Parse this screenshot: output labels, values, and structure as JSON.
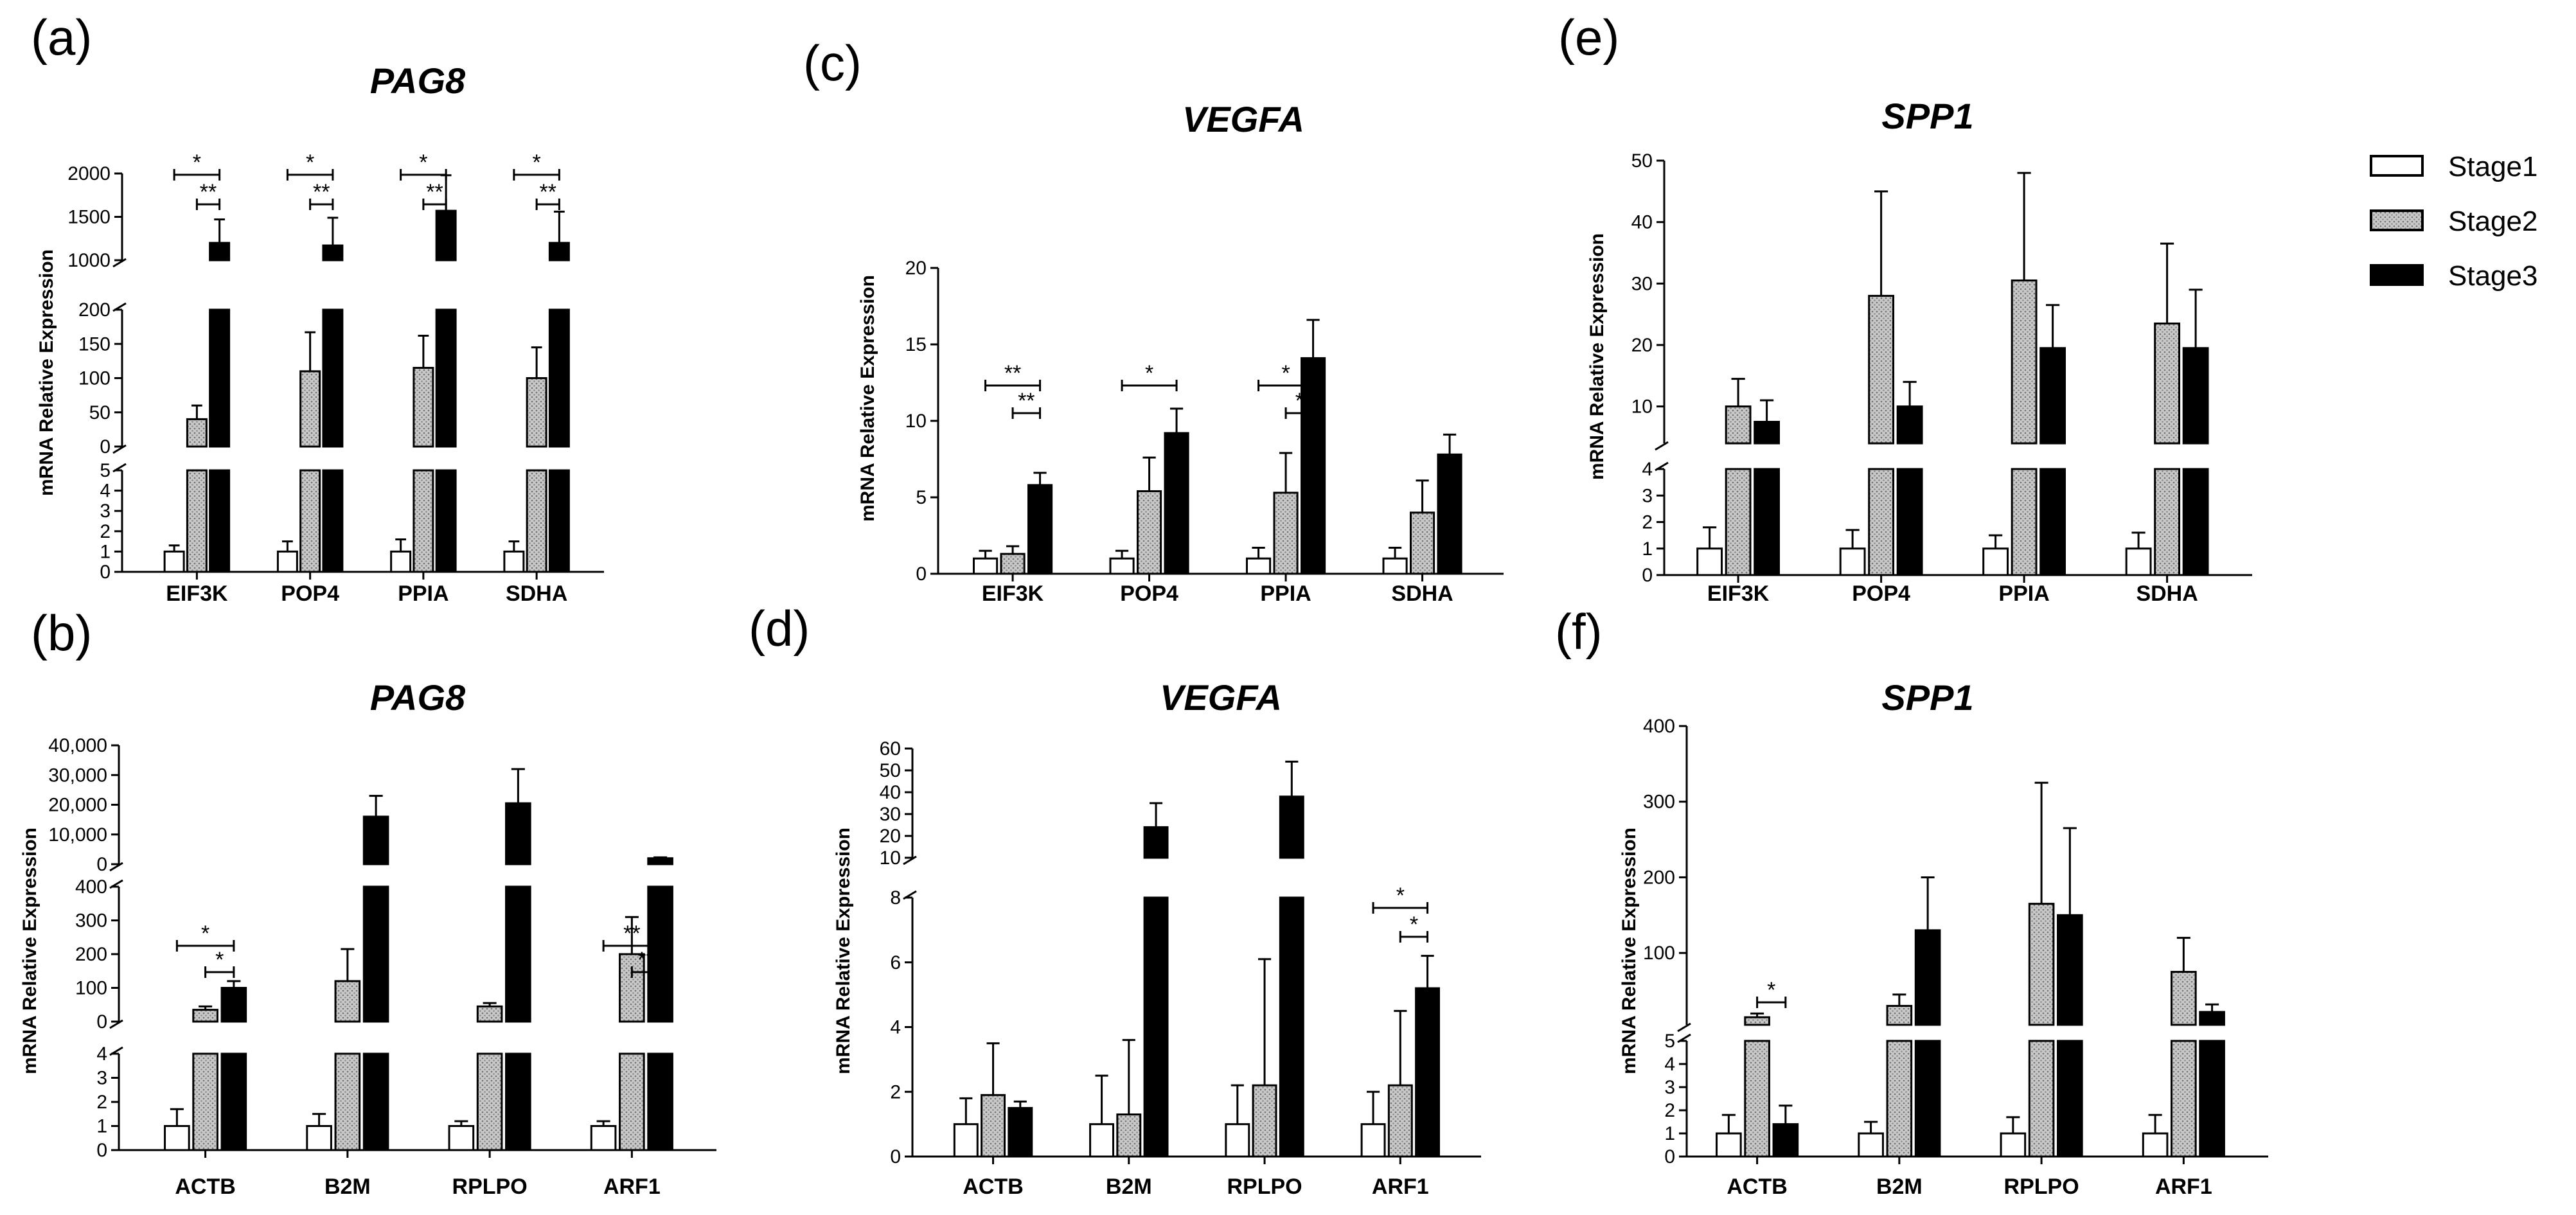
{
  "legend": {
    "entries": [
      {
        "label": "Stage1",
        "style": "white"
      },
      {
        "label": "Stage2",
        "style": "dotted"
      },
      {
        "label": "Stage3",
        "style": "black"
      }
    ],
    "placement": "top-right"
  },
  "chart_data": [
    {
      "panel": "(a)",
      "type": "bar",
      "title": "PAG8",
      "ylabel": "mRNA Relative Expression",
      "categories": [
        "EIF3K",
        "POP4",
        "PPIA",
        "SDHA"
      ],
      "y_segments": [
        {
          "range": [
            0,
            5
          ],
          "ticks": [
            "0",
            "1",
            "2",
            "3",
            "4",
            "5"
          ]
        },
        {
          "range": [
            0,
            200
          ],
          "ticks": [
            "0",
            "50",
            "100",
            "150",
            "200"
          ]
        },
        {
          "range": [
            1000,
            2000
          ],
          "ticks": [
            "1000",
            "1500",
            "2000"
          ]
        }
      ],
      "series": [
        {
          "name": "Stage1",
          "values": [
            1.0,
            1.0,
            1.0,
            1.0
          ],
          "errors": [
            0.3,
            0.5,
            0.6,
            0.5
          ]
        },
        {
          "name": "Stage2",
          "values": [
            40,
            110,
            115,
            100
          ],
          "errors": [
            20,
            57,
            47,
            45
          ]
        },
        {
          "name": "Stage3",
          "values": [
            1200,
            1170,
            1570,
            1200
          ],
          "errors": [
            270,
            320,
            410,
            360
          ]
        }
      ],
      "significance": [
        {
          "cat": 0,
          "from": "Stage1",
          "to": "Stage3",
          "label": "*"
        },
        {
          "cat": 0,
          "from": "Stage2",
          "to": "Stage3",
          "label": "**"
        },
        {
          "cat": 1,
          "from": "Stage1",
          "to": "Stage3",
          "label": "*"
        },
        {
          "cat": 1,
          "from": "Stage2",
          "to": "Stage3",
          "label": "**"
        },
        {
          "cat": 2,
          "from": "Stage1",
          "to": "Stage3",
          "label": "*"
        },
        {
          "cat": 2,
          "from": "Stage2",
          "to": "Stage3",
          "label": "**"
        },
        {
          "cat": 3,
          "from": "Stage1",
          "to": "Stage3",
          "label": "*"
        },
        {
          "cat": 3,
          "from": "Stage2",
          "to": "Stage3",
          "label": "**"
        }
      ]
    },
    {
      "panel": "(b)",
      "type": "bar",
      "title": "PAG8",
      "ylabel": "mRNA Relative Expression",
      "categories": [
        "ACTB",
        "B2M",
        "RPLPO",
        "ARF1"
      ],
      "y_segments": [
        {
          "range": [
            0,
            4
          ],
          "ticks": [
            "0",
            "1",
            "2",
            "3",
            "4"
          ]
        },
        {
          "range": [
            0,
            400
          ],
          "ticks": [
            "0",
            "100",
            "200",
            "300",
            "400"
          ]
        },
        {
          "range": [
            0,
            40000
          ],
          "ticks": [
            "0",
            "10,000",
            "20,000",
            "30,000",
            "40,000"
          ]
        }
      ],
      "series": [
        {
          "name": "Stage1",
          "values": [
            1.0,
            1.0,
            1.0,
            1.0
          ],
          "errors": [
            0.7,
            0.5,
            0.2,
            0.2
          ]
        },
        {
          "name": "Stage2",
          "values": [
            35,
            120,
            45,
            200
          ],
          "errors": [
            10,
            95,
            10,
            110
          ]
        },
        {
          "name": "Stage3",
          "values": [
            100,
            16000,
            20500,
            2000
          ],
          "errors": [
            20,
            7000,
            11500,
            300
          ]
        }
      ],
      "significance": [
        {
          "cat": 0,
          "from": "Stage1",
          "to": "Stage3",
          "label": "*"
        },
        {
          "cat": 0,
          "from": "Stage2",
          "to": "Stage3",
          "label": "*"
        },
        {
          "cat": 3,
          "from": "Stage1",
          "to": "Stage3",
          "label": "**"
        },
        {
          "cat": 3,
          "from": "Stage2",
          "to": "Stage3",
          "label": "**"
        }
      ]
    },
    {
      "panel": "(c)",
      "type": "bar",
      "title": "VEGFA",
      "ylabel": "mRNA Relative Expression",
      "categories": [
        "EIF3K",
        "POP4",
        "PPIA",
        "SDHA"
      ],
      "y_segments": [
        {
          "range": [
            0,
            20
          ],
          "ticks": [
            "0",
            "5",
            "10",
            "15",
            "20"
          ]
        }
      ],
      "series": [
        {
          "name": "Stage1",
          "values": [
            1.0,
            1.0,
            1.0,
            1.0
          ],
          "errors": [
            0.5,
            0.5,
            0.7,
            0.7
          ]
        },
        {
          "name": "Stage2",
          "values": [
            1.3,
            5.4,
            5.3,
            4.0
          ],
          "errors": [
            0.5,
            2.2,
            2.6,
            2.1
          ]
        },
        {
          "name": "Stage3",
          "values": [
            5.8,
            9.2,
            14.1,
            7.8
          ],
          "errors": [
            0.8,
            1.6,
            2.5,
            1.3
          ]
        }
      ],
      "significance": [
        {
          "cat": 0,
          "from": "Stage1",
          "to": "Stage3",
          "label": "**"
        },
        {
          "cat": 0,
          "from": "Stage2",
          "to": "Stage3",
          "label": "**"
        },
        {
          "cat": 1,
          "from": "Stage1",
          "to": "Stage3",
          "label": "*"
        },
        {
          "cat": 2,
          "from": "Stage1",
          "to": "Stage3",
          "label": "*"
        },
        {
          "cat": 2,
          "from": "Stage2",
          "to": "Stage3",
          "label": "*"
        }
      ]
    },
    {
      "panel": "(d)",
      "type": "bar",
      "title": "VEGFA",
      "ylabel": "mRNA Relative Expression",
      "categories": [
        "ACTB",
        "B2M",
        "RPLPO",
        "ARF1"
      ],
      "y_segments": [
        {
          "range": [
            0,
            8
          ],
          "ticks": [
            "0",
            "2",
            "4",
            "6",
            "8"
          ]
        },
        {
          "range": [
            10,
            60
          ],
          "ticks": [
            "10",
            "20",
            "30",
            "40",
            "50",
            "60"
          ]
        }
      ],
      "series": [
        {
          "name": "Stage1",
          "values": [
            1.0,
            1.0,
            1.0,
            1.0
          ],
          "errors": [
            0.8,
            1.5,
            1.2,
            1.0
          ]
        },
        {
          "name": "Stage2",
          "values": [
            1.9,
            1.3,
            2.2,
            2.2
          ],
          "errors": [
            1.6,
            2.3,
            3.9,
            2.3
          ]
        },
        {
          "name": "Stage3",
          "values": [
            1.5,
            24,
            38,
            5.2
          ],
          "errors": [
            0.2,
            11,
            16,
            1.0
          ]
        }
      ],
      "significance": [
        {
          "cat": 3,
          "from": "Stage1",
          "to": "Stage3",
          "label": "*"
        },
        {
          "cat": 3,
          "from": "Stage2",
          "to": "Stage3",
          "label": "*"
        }
      ]
    },
    {
      "panel": "(e)",
      "type": "bar",
      "title": "SPP1",
      "ylabel": "mRNA Relative Expression",
      "categories": [
        "EIF3K",
        "POP4",
        "PPIA",
        "SDHA"
      ],
      "y_segments": [
        {
          "range": [
            0,
            4
          ],
          "ticks": [
            "0",
            "1",
            "2",
            "3",
            "4"
          ]
        },
        {
          "range": [
            4,
            50
          ],
          "ticks": [
            "10",
            "20",
            "30",
            "40",
            "50"
          ]
        }
      ],
      "series": [
        {
          "name": "Stage1",
          "values": [
            1.0,
            1.0,
            1.0,
            1.0
          ],
          "errors": [
            0.8,
            0.7,
            0.5,
            0.6
          ]
        },
        {
          "name": "Stage2",
          "values": [
            10,
            28,
            30.5,
            23.5
          ],
          "errors": [
            4.5,
            17,
            17.5,
            13
          ]
        },
        {
          "name": "Stage3",
          "values": [
            7.5,
            10,
            19.5,
            19.5
          ],
          "errors": [
            3.5,
            4,
            7,
            9.5
          ]
        }
      ],
      "significance": []
    },
    {
      "panel": "(f)",
      "type": "bar",
      "title": "SPP1",
      "ylabel": "mRNA Relative Expression",
      "categories": [
        "ACTB",
        "B2M",
        "RPLPO",
        "ARF1"
      ],
      "y_segments": [
        {
          "range": [
            0,
            5
          ],
          "ticks": [
            "0",
            "1",
            "2",
            "3",
            "4",
            "5"
          ]
        },
        {
          "range": [
            5,
            400
          ],
          "ticks": [
            "100",
            "200",
            "300",
            "400"
          ]
        }
      ],
      "series": [
        {
          "name": "Stage1",
          "values": [
            1.0,
            1.0,
            1.0,
            1.0
          ],
          "errors": [
            0.8,
            0.5,
            0.7,
            0.8
          ]
        },
        {
          "name": "Stage2",
          "values": [
            15,
            30,
            165,
            75
          ],
          "errors": [
            5,
            15,
            160,
            45
          ]
        },
        {
          "name": "Stage3",
          "values": [
            1.4,
            130,
            150,
            22
          ],
          "errors": [
            0.8,
            70,
            115,
            10
          ]
        }
      ],
      "significance": [
        {
          "cat": 0,
          "from": "Stage2",
          "to": "Stage3",
          "label": "*"
        }
      ]
    }
  ]
}
